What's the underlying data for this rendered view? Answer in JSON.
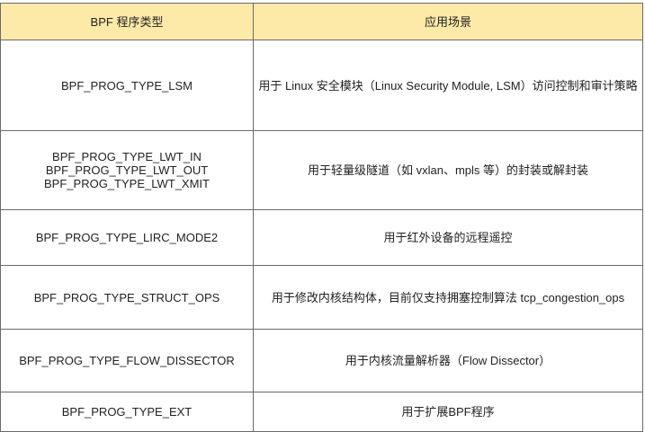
{
  "table": {
    "headers": [
      "BPF 程序类型",
      "应用场景"
    ],
    "header_bg": "#fdeaa8",
    "rows": [
      {
        "type": [
          "BPF_PROG_TYPE_LSM"
        ],
        "usage": "用于 Linux 安全模块（Linux Security Module, LSM）访问控制和审计策略"
      },
      {
        "type": [
          "BPF_PROG_TYPE_LWT_IN",
          "BPF_PROG_TYPE_LWT_OUT",
          "BPF_PROG_TYPE_LWT_XMIT"
        ],
        "usage": "用于轻量级隧道（如 vxlan、mpls 等）的封装或解封装"
      },
      {
        "type": [
          "BPF_PROG_TYPE_LIRC_MODE2"
        ],
        "usage": "用于红外设备的远程遥控"
      },
      {
        "type": [
          "BPF_PROG_TYPE_STRUCT_OPS"
        ],
        "usage": "用于修改内核结构体，目前仅支持拥塞控制算法 tcp_congestion_ops"
      },
      {
        "type": [
          "BPF_PROG_TYPE_FLOW_DISSECTOR"
        ],
        "usage": "用于内核流量解析器（Flow Dissector）"
      },
      {
        "type": [
          "BPF_PROG_TYPE_EXT"
        ],
        "usage": "用于扩展BPF程序"
      }
    ]
  }
}
